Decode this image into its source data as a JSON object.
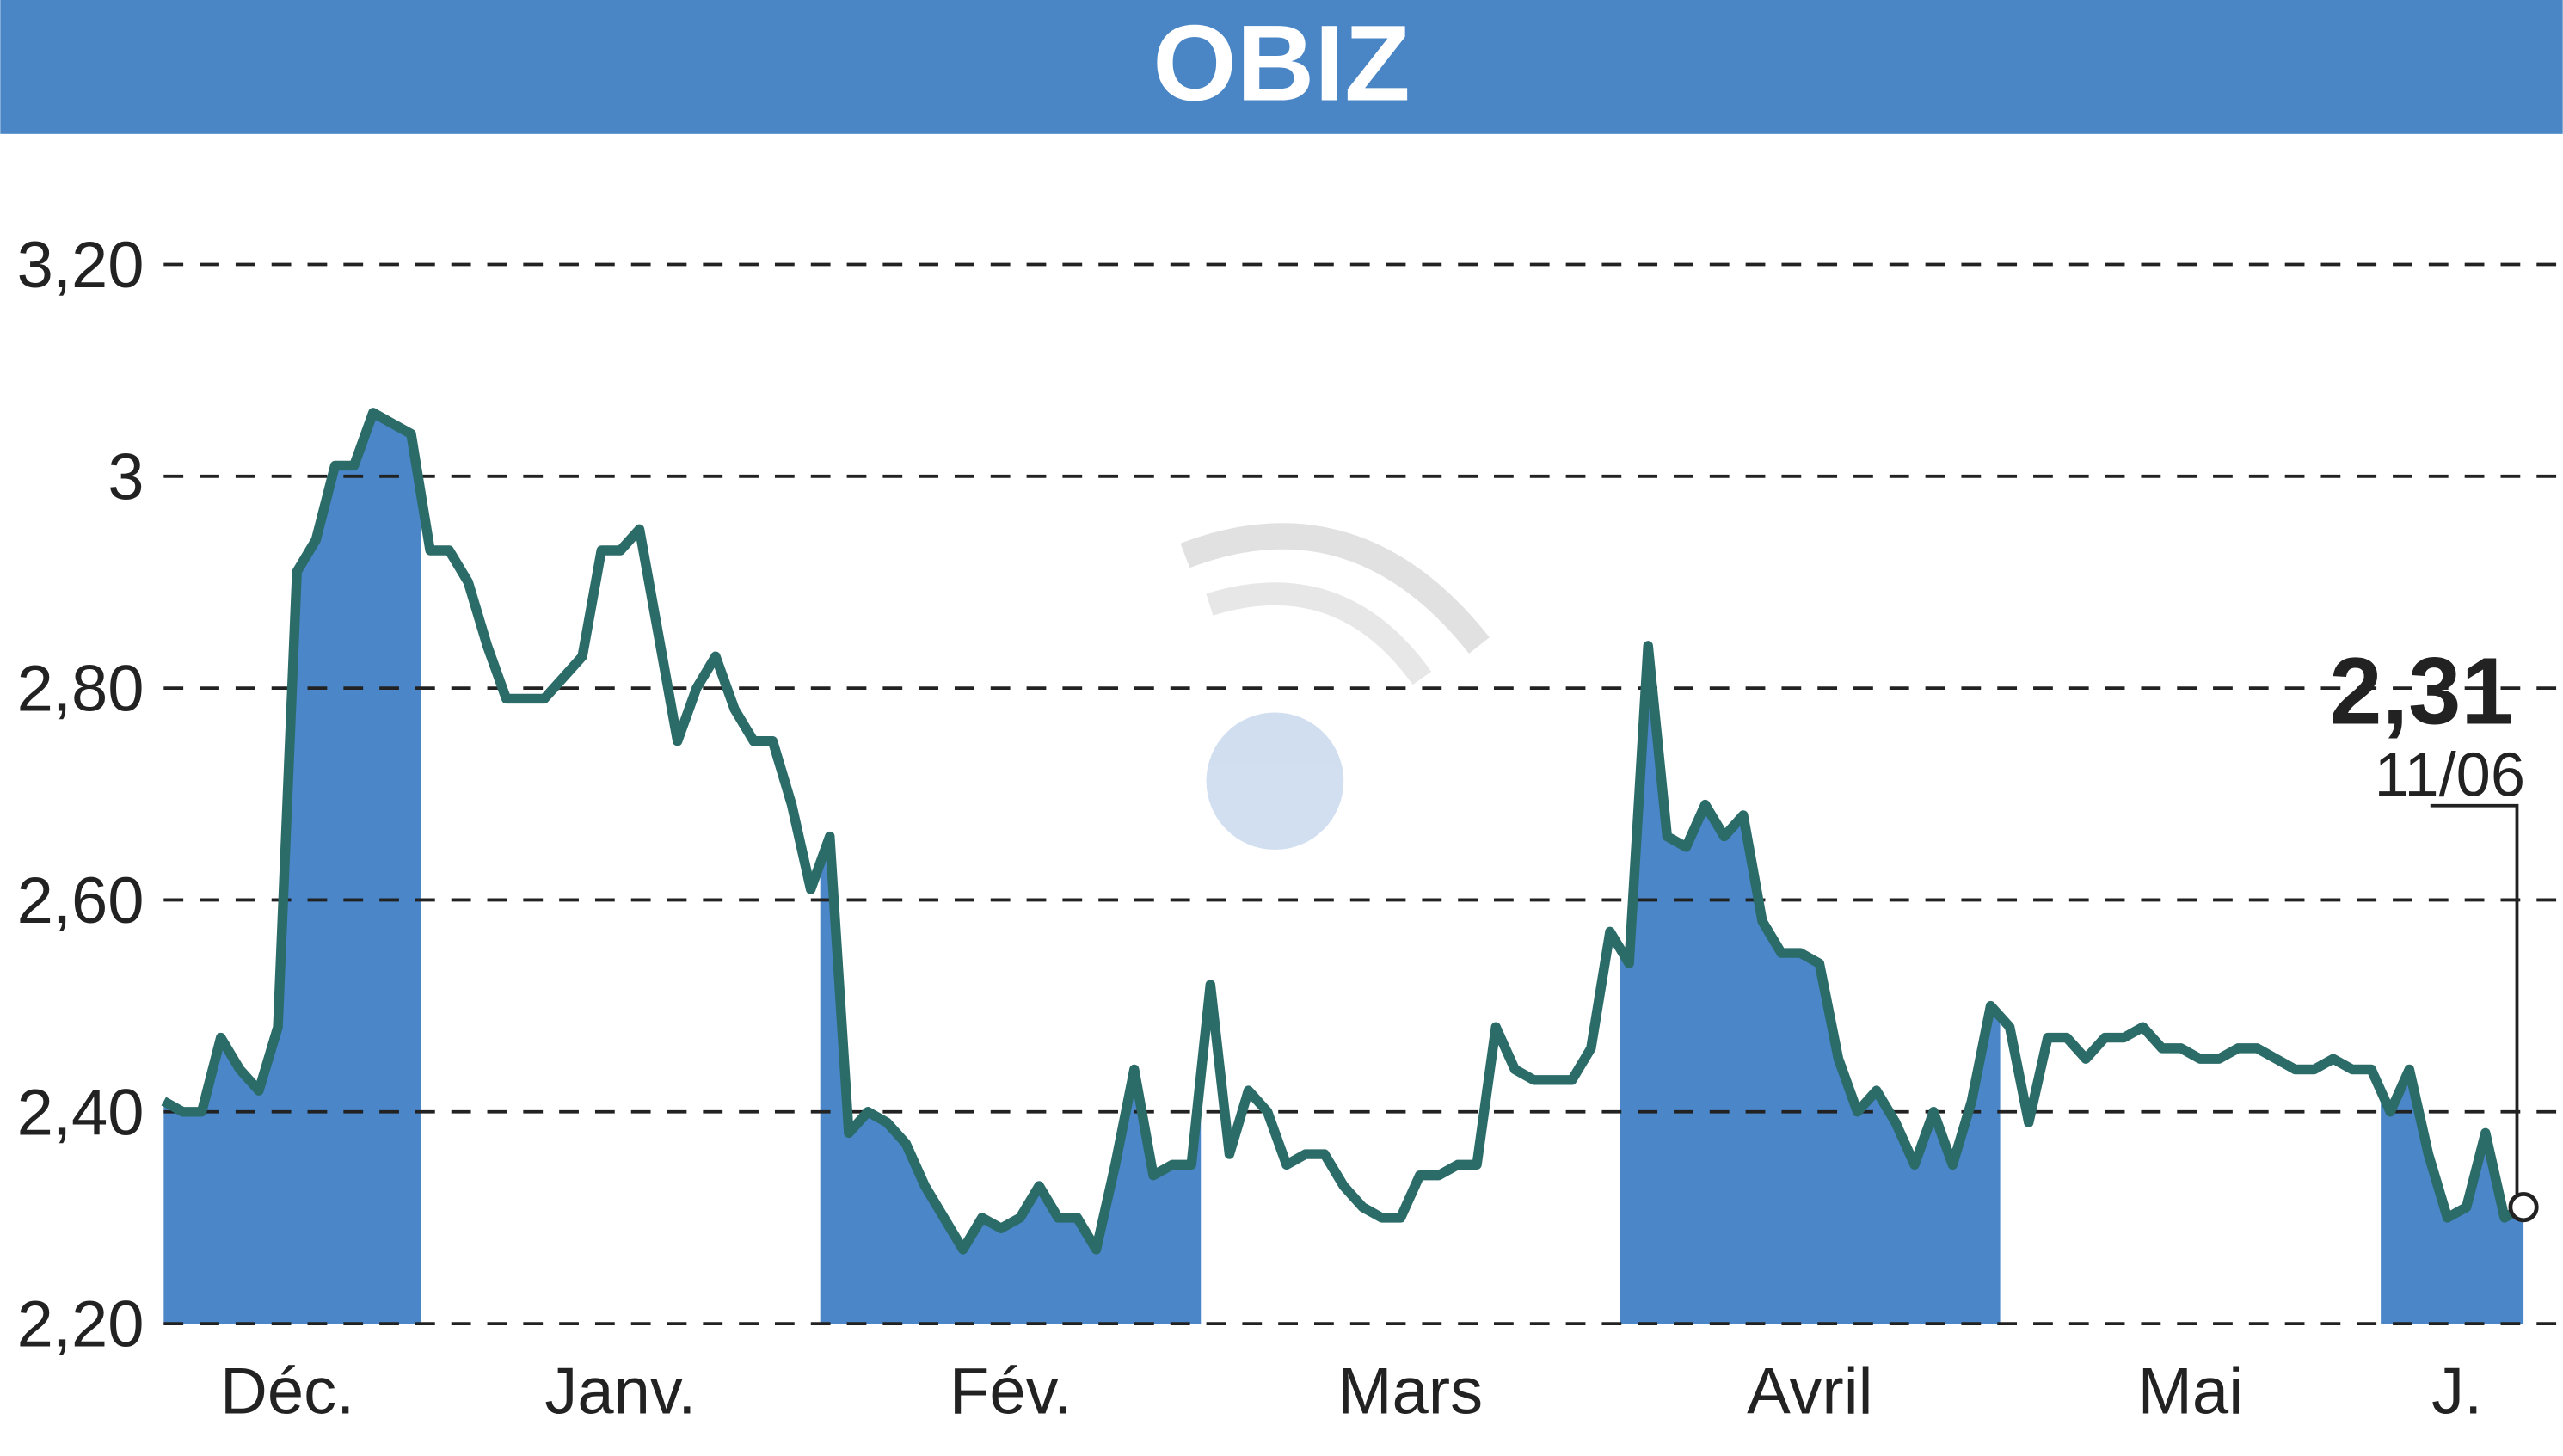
{
  "chart_data": {
    "type": "line",
    "title": "OBIZ",
    "series": [
      {
        "color": "#2b6b68",
        "values": [
          2.41,
          2.4,
          2.4,
          2.47,
          2.44,
          2.42,
          2.48,
          2.91,
          2.94,
          3.01,
          3.01,
          3.06,
          3.05,
          3.04,
          2.93,
          2.93,
          2.9,
          2.84,
          2.79,
          2.79,
          2.79,
          2.81,
          2.83,
          2.93,
          2.93,
          2.95,
          2.85,
          2.75,
          2.8,
          2.83,
          2.78,
          2.75,
          2.75,
          2.69,
          2.61,
          2.66,
          2.38,
          2.4,
          2.39,
          2.37,
          2.33,
          2.3,
          2.27,
          2.3,
          2.29,
          2.3,
          2.33,
          2.3,
          2.3,
          2.27,
          2.35,
          2.44,
          2.34,
          2.35,
          2.35,
          2.52,
          2.36,
          2.42,
          2.4,
          2.35,
          2.36,
          2.36,
          2.33,
          2.31,
          2.3,
          2.3,
          2.34,
          2.34,
          2.35,
          2.35,
          2.48,
          2.44,
          2.43,
          2.43,
          2.43,
          2.46,
          2.57,
          2.54,
          2.84,
          2.66,
          2.65,
          2.69,
          2.66,
          2.68,
          2.58,
          2.55,
          2.55,
          2.54,
          2.45,
          2.4,
          2.42,
          2.39,
          2.35,
          2.4,
          2.35,
          2.41,
          2.5,
          2.48,
          2.39,
          2.47,
          2.47,
          2.45,
          2.47,
          2.47,
          2.48,
          2.46,
          2.46,
          2.45,
          2.45,
          2.46,
          2.46,
          2.45,
          2.44,
          2.44,
          2.45,
          2.44,
          2.44,
          2.4,
          2.44,
          2.36,
          2.3,
          2.31,
          2.38,
          2.3,
          2.31
        ]
      }
    ],
    "area_color": "#4a86c8",
    "months": [
      {
        "label": "Déc.",
        "start": 0
      },
      {
        "label": "Janv.",
        "start": 14
      },
      {
        "label": "Fév.",
        "start": 35
      },
      {
        "label": "Mars",
        "start": 55
      },
      {
        "label": "Avril",
        "start": 77
      },
      {
        "label": "Mai",
        "start": 97
      },
      {
        "label": "J.",
        "start": 117
      }
    ],
    "ylim": [
      2.2,
      3.3
    ],
    "yticks": [
      {
        "value": 2.2,
        "label": "2,20"
      },
      {
        "value": 2.4,
        "label": "2,40"
      },
      {
        "value": 2.6,
        "label": "2,60"
      },
      {
        "value": 2.8,
        "label": "2,80"
      },
      3,
      {
        "value": 3.2,
        "label": "3,20"
      }
    ],
    "grid": true,
    "last_value_label": "2,31",
    "last_date": "11/06"
  }
}
